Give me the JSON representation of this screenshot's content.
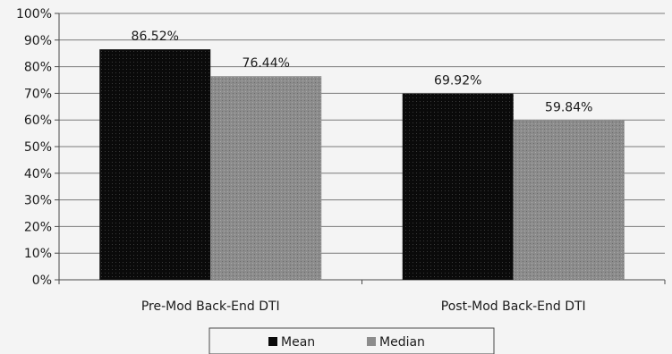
{
  "chart_data": {
    "type": "bar",
    "title": "",
    "xlabel": "",
    "ylabel": "",
    "categories": [
      "Pre-Mod Back-End DTI",
      "Post-Mod Back-End DTI"
    ],
    "series": [
      {
        "name": "Mean",
        "values": [
          86.52,
          69.92
        ],
        "labels": [
          "86.52%",
          "69.92%"
        ],
        "color": "#0a0a0a"
      },
      {
        "name": "Median",
        "values": [
          76.44,
          59.84
        ],
        "labels": [
          "76.44%",
          "59.84%"
        ],
        "color": "#8c8c8c"
      }
    ],
    "ylim": [
      0,
      100
    ],
    "yticks": [
      "0%",
      "10%",
      "20%",
      "30%",
      "40%",
      "50%",
      "60%",
      "70%",
      "80%",
      "90%",
      "100%"
    ],
    "grid": true,
    "legend_position": "bottom"
  }
}
